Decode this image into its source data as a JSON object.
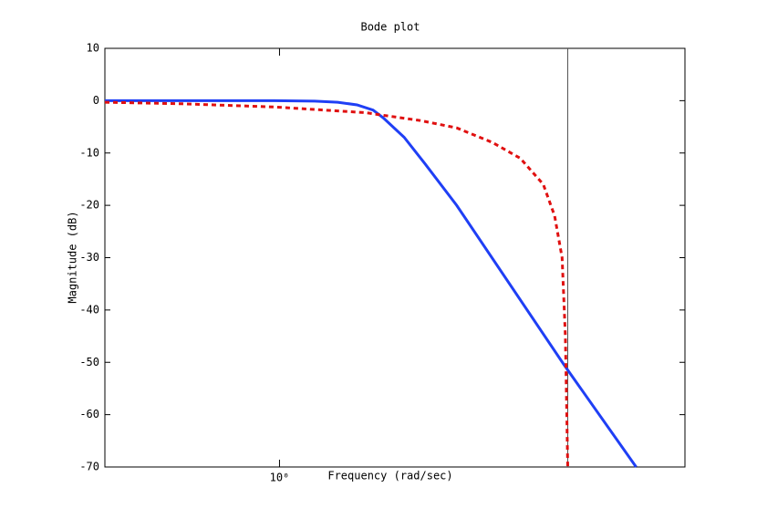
{
  "chart_data": {
    "type": "line",
    "title": "Bode plot",
    "x_label": "Frequency  (rad/sec)",
    "y_label": "Magnitude (dB)",
    "x_scale": "log",
    "xlim": [
      0.5,
      5
    ],
    "xticks": [
      {
        "value": 1,
        "label": "10⁰"
      }
    ],
    "ylim": [
      -70,
      10
    ],
    "yticks": [
      10,
      0,
      -10,
      -20,
      -30,
      -40,
      -50,
      -60,
      -70
    ],
    "vline_x": 3.14,
    "vline_color": "#555555",
    "series": [
      {
        "color": "#1f3ff5",
        "dash": "solid",
        "x": [
          0.5,
          0.98,
          1.15,
          1.26,
          1.36,
          1.45,
          1.51,
          1.64,
          1.78,
          2.02,
          3.09,
          4.12
        ],
        "values": [
          0,
          0,
          -0.1,
          -0.3,
          -0.8,
          -1.8,
          -3.3,
          -7,
          -12,
          -20,
          -50.4,
          -70
        ]
      },
      {
        "color": "#e01010",
        "dash": "dashed",
        "x": [
          0.5,
          0.68,
          0.98,
          1.41,
          1.51,
          1.75,
          2.02,
          2.33,
          2.6,
          2.85,
          2.98,
          3.07,
          3.11,
          3.14
        ],
        "values": [
          -0.3,
          -0.6,
          -1.2,
          -2.3,
          -2.8,
          -3.8,
          -5.2,
          -8,
          -11,
          -16,
          -22,
          -30,
          -45,
          -70
        ]
      }
    ]
  }
}
